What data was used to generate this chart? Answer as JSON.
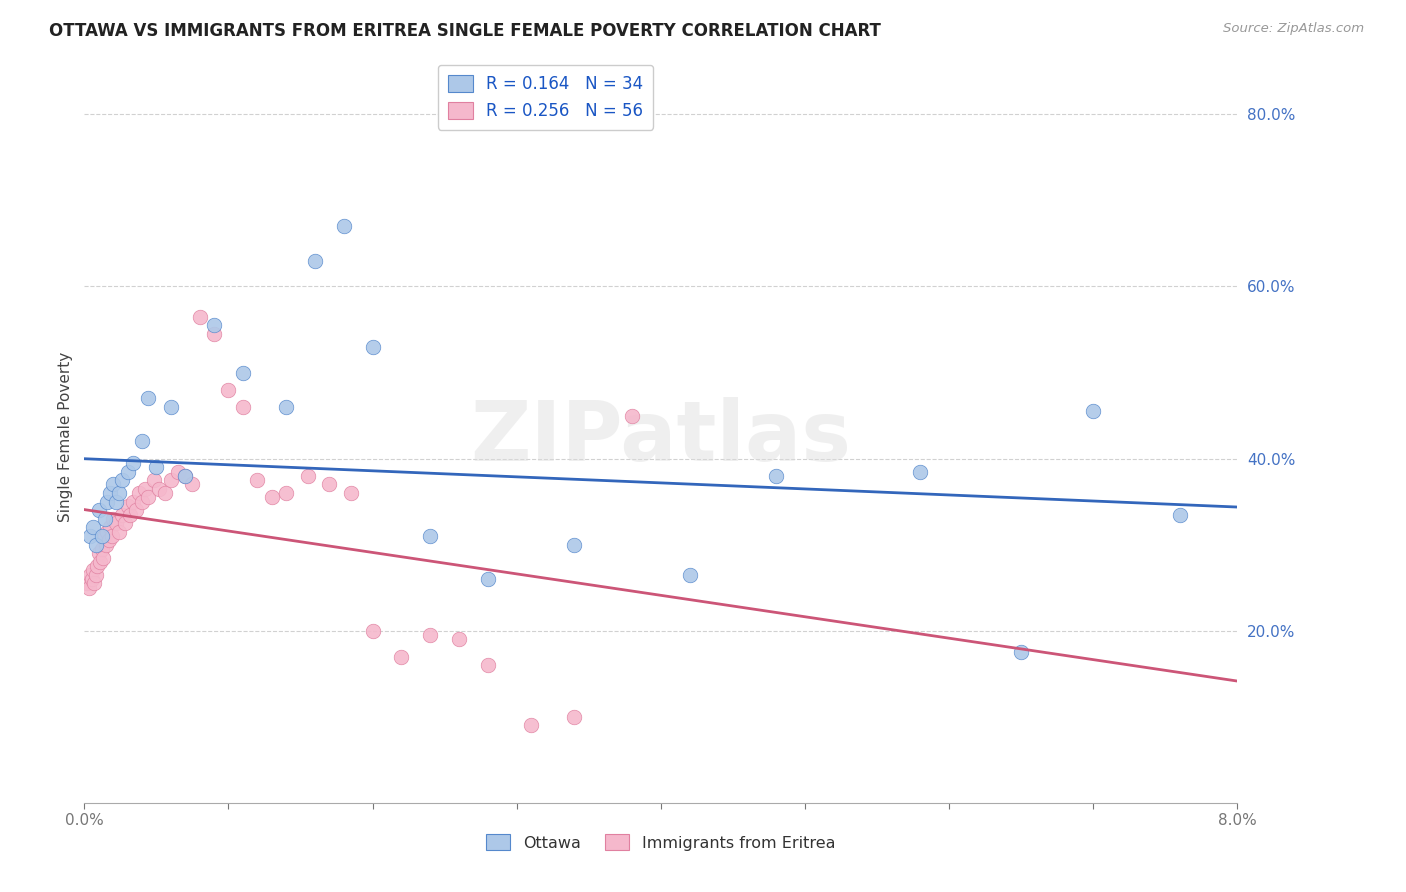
{
  "title": "OTTAWA VS IMMIGRANTS FROM ERITREA SINGLE FEMALE POVERTY CORRELATION CHART",
  "source": "Source: ZipAtlas.com",
  "ylabel": "Single Female Poverty",
  "xlim": [
    0.0,
    0.08
  ],
  "ylim": [
    0.0,
    0.85
  ],
  "ytick_positions": [
    0.2,
    0.4,
    0.6,
    0.8
  ],
  "ytick_labels": [
    "20.0%",
    "40.0%",
    "60.0%",
    "80.0%"
  ],
  "xtick_only_labels": [
    "0.0%",
    "8.0%"
  ],
  "legend_line1": "R = 0.164   N = 34",
  "legend_line2": "R = 0.256   N = 56",
  "watermark": "ZIPatlas",
  "ottawa_color": "#adc8e8",
  "ottawa_edge_color": "#5588cc",
  "ottawa_line_color": "#3366bb",
  "eritrea_color": "#f5b8cc",
  "eritrea_edge_color": "#e080a0",
  "eritrea_line_color": "#cc5577",
  "ottawa_x": [
    0.0004,
    0.0006,
    0.0008,
    0.001,
    0.0012,
    0.0014,
    0.0016,
    0.0018,
    0.002,
    0.0022,
    0.0024,
    0.0026,
    0.003,
    0.0034,
    0.004,
    0.0044,
    0.005,
    0.006,
    0.007,
    0.009,
    0.011,
    0.014,
    0.016,
    0.018,
    0.02,
    0.024,
    0.028,
    0.034,
    0.042,
    0.048,
    0.058,
    0.065,
    0.07,
    0.076
  ],
  "ottawa_y": [
    0.31,
    0.32,
    0.3,
    0.34,
    0.31,
    0.33,
    0.35,
    0.36,
    0.37,
    0.35,
    0.36,
    0.375,
    0.385,
    0.395,
    0.42,
    0.47,
    0.39,
    0.46,
    0.38,
    0.555,
    0.5,
    0.46,
    0.63,
    0.67,
    0.53,
    0.31,
    0.26,
    0.3,
    0.265,
    0.38,
    0.385,
    0.175,
    0.455,
    0.335
  ],
  "eritrea_x": [
    0.0002,
    0.0003,
    0.0004,
    0.0005,
    0.0006,
    0.0007,
    0.0008,
    0.0009,
    0.001,
    0.0011,
    0.0012,
    0.0013,
    0.0014,
    0.0015,
    0.0016,
    0.0017,
    0.0018,
    0.0019,
    0.002,
    0.0022,
    0.0024,
    0.0026,
    0.0028,
    0.003,
    0.0032,
    0.0034,
    0.0036,
    0.0038,
    0.004,
    0.0042,
    0.0044,
    0.0048,
    0.0052,
    0.0056,
    0.006,
    0.0065,
    0.007,
    0.0075,
    0.008,
    0.009,
    0.01,
    0.011,
    0.012,
    0.013,
    0.014,
    0.0155,
    0.017,
    0.0185,
    0.02,
    0.022,
    0.024,
    0.026,
    0.028,
    0.031,
    0.034,
    0.038
  ],
  "eritrea_y": [
    0.255,
    0.25,
    0.265,
    0.26,
    0.27,
    0.255,
    0.265,
    0.275,
    0.29,
    0.28,
    0.295,
    0.285,
    0.31,
    0.3,
    0.315,
    0.305,
    0.32,
    0.31,
    0.33,
    0.325,
    0.315,
    0.335,
    0.325,
    0.345,
    0.335,
    0.35,
    0.34,
    0.36,
    0.35,
    0.365,
    0.355,
    0.375,
    0.365,
    0.36,
    0.375,
    0.385,
    0.38,
    0.37,
    0.565,
    0.545,
    0.48,
    0.46,
    0.375,
    0.355,
    0.36,
    0.38,
    0.37,
    0.36,
    0.2,
    0.17,
    0.195,
    0.19,
    0.16,
    0.09,
    0.1,
    0.45
  ]
}
